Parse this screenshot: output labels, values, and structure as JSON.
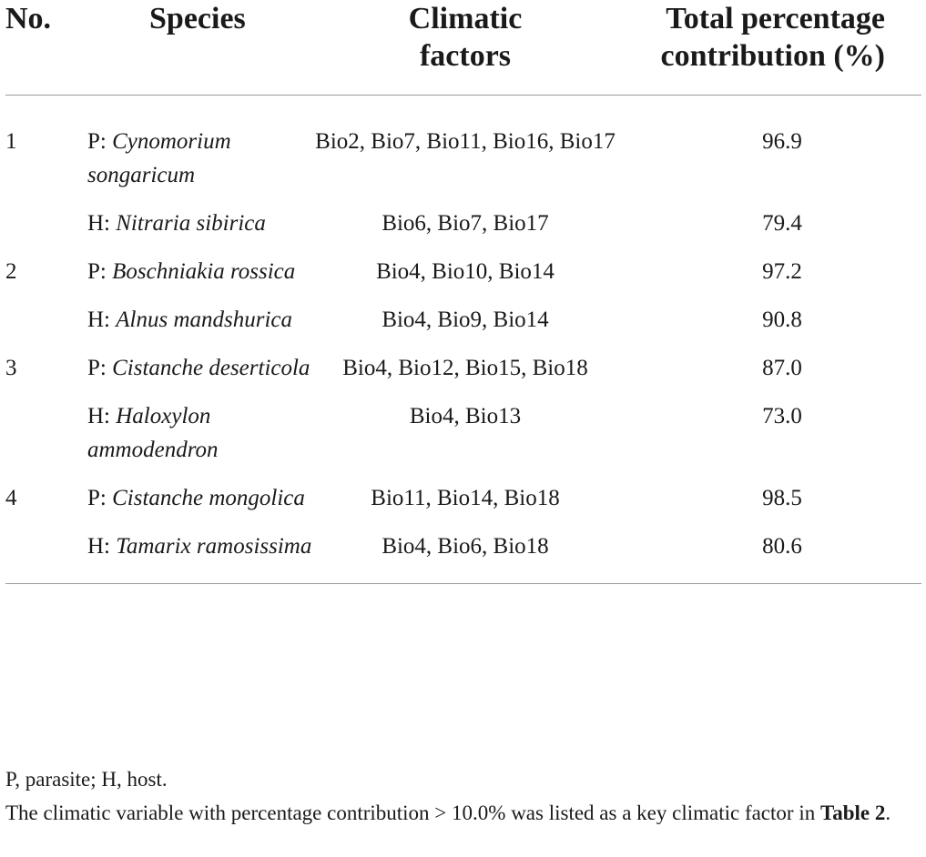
{
  "table": {
    "headers": {
      "no": "No.",
      "species": "Species",
      "climatic_line1": "Climatic",
      "climatic_line2": "factors",
      "total_line1": "Total percentage",
      "total_line2": "contribution (%)"
    },
    "rows": [
      {
        "no": "1",
        "prefix": "P: ",
        "species": "Cynomorium songaricum",
        "factors": "Bio2, Bio7, Bio11, Bio16, Bio17",
        "total": "96.9"
      },
      {
        "no": "",
        "prefix": "H: ",
        "species": "Nitraria sibirica",
        "factors": "Bio6, Bio7, Bio17",
        "total": "79.4"
      },
      {
        "no": "2",
        "prefix": "P: ",
        "species": "Boschniakia rossica",
        "factors": "Bio4, Bio10, Bio14",
        "total": "97.2"
      },
      {
        "no": "",
        "prefix": "H: ",
        "species": "Alnus mandshurica",
        "factors": "Bio4, Bio9, Bio14",
        "total": "90.8"
      },
      {
        "no": "3",
        "prefix": "P: ",
        "species": "Cistanche deserticola",
        "factors": "Bio4, Bio12, Bio15, Bio18",
        "total": "87.0"
      },
      {
        "no": "",
        "prefix": "H: ",
        "species": "Haloxylon ammodendron",
        "factors": "Bio4, Bio13",
        "total": "73.0"
      },
      {
        "no": "4",
        "prefix": "P: ",
        "species": "Cistanche mongolica",
        "factors": "Bio11, Bio14, Bio18",
        "total": "98.5"
      },
      {
        "no": "",
        "prefix": "H: ",
        "species": "Tamarix ramosissima",
        "factors": "Bio4, Bio6, Bio18",
        "total": "80.6"
      }
    ]
  },
  "footnotes": {
    "abbrev": "P, parasite; H, host.",
    "note_text": "The climatic variable with percentage contribution > 10.0% was listed as a key climatic factor in ",
    "note_ref": "Table 2",
    "note_end": "."
  }
}
